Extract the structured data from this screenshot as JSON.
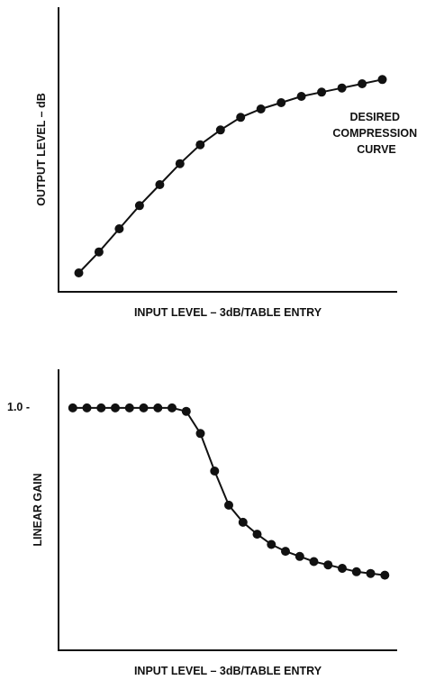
{
  "chart_data": [
    {
      "type": "line",
      "title": "",
      "xlabel": "INPUT LEVEL – 3dB/TABLE ENTRY",
      "ylabel": "OUTPUT LEVEL – dB",
      "annotation": [
        "DESIRED",
        "COMPRESSION",
        "CURVE"
      ],
      "x": [
        1,
        2,
        3,
        4,
        5,
        6,
        7,
        8,
        9,
        10,
        11,
        12,
        13,
        14,
        15,
        16
      ],
      "series": [
        {
          "values": [
            0.09,
            0.19,
            0.3,
            0.41,
            0.51,
            0.61,
            0.7,
            0.77,
            0.83,
            0.87,
            0.9,
            0.93,
            0.95,
            0.97,
            0.99,
            1.01
          ]
        }
      ],
      "ylim": [
        0,
        1.2
      ],
      "xlim": [
        0,
        17
      ],
      "grid": false,
      "legend": "none"
    },
    {
      "type": "line",
      "title": "",
      "xlabel": "INPUT LEVEL – 3dB/TABLE ENTRY",
      "ylabel": "LINEAR GAIN",
      "y_tick_labels": [
        "1.0 -"
      ],
      "x": [
        1,
        2,
        3,
        4,
        5,
        6,
        7,
        8,
        9,
        10,
        11,
        12,
        13,
        14,
        15,
        16,
        17,
        18,
        19,
        20,
        21,
        22,
        23
      ],
      "series": [
        {
          "values": [
            1.0,
            1.0,
            1.0,
            1.0,
            1.0,
            1.0,
            1.0,
            1.0,
            0.98,
            0.85,
            0.63,
            0.43,
            0.33,
            0.26,
            0.2,
            0.16,
            0.13,
            0.1,
            0.08,
            0.06,
            0.04,
            0.03,
            0.02
          ]
        }
      ],
      "ylim": [
        -0.42,
        1.2
      ],
      "xlim": [
        0,
        24
      ],
      "grid": false,
      "legend": "none"
    }
  ]
}
